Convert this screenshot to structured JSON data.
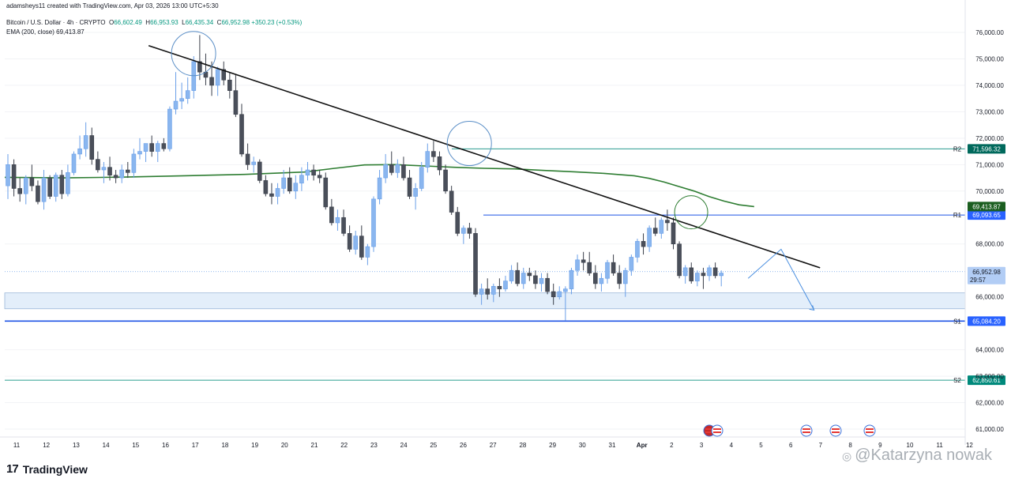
{
  "header": {
    "credit": "adamsheys11 created with TradingView.com, Apr 03, 2026 13:00 UTC+5:30",
    "symbol": "Bitcoin / U.S. Dollar · 4h · CRYPTO",
    "ohlc": {
      "o_label": "O",
      "o": "66,602.49",
      "h_label": "H",
      "h": "66,953.93",
      "l_label": "L",
      "l": "66,435.34",
      "c_label": "C",
      "c": "66,952.98",
      "change": "+350.23 (+0.53%)"
    },
    "ema_label": "EMA (200, close)",
    "ema_value": "69,413.87"
  },
  "chart_data": {
    "type": "candlestick",
    "symbol": "BTCUSD",
    "interval": "4h",
    "ylim": [
      60800,
      76400
    ],
    "y_ticks": [
      "76,000.00",
      "75,000.00",
      "74,000.00",
      "73,000.00",
      "72,000.00",
      "71,000.00",
      "70,000.00",
      "68,000.00",
      "66,000.00",
      "64,000.00",
      "63,000.00",
      "62,000.00",
      "61,000.00"
    ],
    "y_tick_values": [
      76000,
      75000,
      74000,
      73000,
      72000,
      71000,
      70000,
      68000,
      66000,
      64000,
      63000,
      62000,
      61000
    ],
    "x_ticks": [
      "11",
      "12",
      "13",
      "14",
      "15",
      "16",
      "17",
      "18",
      "19",
      "20",
      "21",
      "22",
      "23",
      "24",
      "25",
      "26",
      "27",
      "28",
      "29",
      "30",
      "31",
      "Apr",
      "2",
      "3",
      "4",
      "5",
      "6",
      "7",
      "8",
      "9",
      "10",
      "11",
      "12"
    ],
    "levels": [
      {
        "name": "R2",
        "value": 71596.32,
        "label": "71,596.32",
        "color": "#2a9d8f",
        "tag_color": "#00695c"
      },
      {
        "name": "R1",
        "value": 69093.65,
        "label": "69,093.65",
        "color": "#1e53e5",
        "tag_color": "#2962ff"
      },
      {
        "name": "S1",
        "value": 65084.2,
        "label": "65,084.20",
        "color": "#1e53e5",
        "tag_color": "#2962ff"
      },
      {
        "name": "S2",
        "value": 62850.61,
        "label": "62,850.61",
        "color": "#2a9d8f",
        "tag_color": "#00897b"
      }
    ],
    "ema": {
      "value": 69413.87,
      "label": "69,413.87",
      "color": "#2e7d32",
      "points": [
        [
          0,
          70520
        ],
        [
          2,
          70500
        ],
        [
          4,
          70530
        ],
        [
          6,
          70580
        ],
        [
          8,
          70630
        ],
        [
          10,
          70720
        ],
        [
          11,
          70860
        ],
        [
          12,
          70990
        ],
        [
          13,
          71000
        ],
        [
          14,
          70950
        ],
        [
          15,
          70900
        ],
        [
          16,
          70860
        ],
        [
          17,
          70840
        ],
        [
          18,
          70780
        ],
        [
          19,
          70730
        ],
        [
          20,
          70670
        ],
        [
          21,
          70580
        ],
        [
          21.5,
          70480
        ],
        [
          22,
          70340
        ],
        [
          22.5,
          70170
        ],
        [
          23,
          70000
        ],
        [
          23.5,
          69790
        ],
        [
          24,
          69620
        ],
        [
          24.5,
          69480
        ],
        [
          25,
          69413.87
        ]
      ]
    },
    "last_price": {
      "value": 66952.98,
      "label": "66,952.98",
      "countdown": "29:57"
    },
    "support_zone": [
      65550,
      66150
    ],
    "trendline": [
      [
        4.8,
        75500
      ],
      [
        27.2,
        67100
      ]
    ],
    "projection": [
      [
        24.8,
        66700
      ],
      [
        25.9,
        67800
      ],
      [
        27.0,
        65500
      ]
    ],
    "highlight_circles": [
      [
        6.3,
        75200
      ],
      [
        15.5,
        71800
      ],
      [
        22.9,
        69200
      ]
    ],
    "candles": [
      [
        0.0,
        70200,
        71400,
        69700,
        71000
      ],
      [
        0.2,
        71000,
        71200,
        69800,
        70100
      ],
      [
        0.4,
        70100,
        70500,
        69600,
        69900
      ],
      [
        0.6,
        69900,
        70600,
        69500,
        70500
      ],
      [
        0.8,
        70500,
        71000,
        70000,
        70200
      ],
      [
        1.0,
        70200,
        70400,
        69500,
        69600
      ],
      [
        1.2,
        69600,
        70800,
        69300,
        70500
      ],
      [
        1.4,
        70500,
        70600,
        69700,
        69800
      ],
      [
        1.6,
        69800,
        70700,
        69600,
        70600
      ],
      [
        1.8,
        70600,
        70800,
        69700,
        69900
      ],
      [
        2.0,
        69900,
        71000,
        69800,
        70700
      ],
      [
        2.2,
        70700,
        71500,
        70600,
        71400
      ],
      [
        2.4,
        71400,
        72100,
        71200,
        71600
      ],
      [
        2.6,
        71600,
        72600,
        71300,
        72100
      ],
      [
        2.8,
        72100,
        72400,
        71000,
        71200
      ],
      [
        3.0,
        71200,
        71500,
        70700,
        70800
      ],
      [
        3.2,
        70800,
        71100,
        70300,
        70900
      ],
      [
        3.4,
        70900,
        71300,
        70400,
        70600
      ],
      [
        3.6,
        70600,
        70800,
        70300,
        70500
      ],
      [
        3.8,
        70500,
        71000,
        70300,
        70800
      ],
      [
        4.0,
        70800,
        71100,
        70500,
        70700
      ],
      [
        4.2,
        70700,
        71600,
        70500,
        71400
      ],
      [
        4.4,
        71400,
        72000,
        71200,
        71500
      ],
      [
        4.6,
        71500,
        71800,
        71100,
        71800
      ],
      [
        4.8,
        71800,
        72100,
        71300,
        71500
      ],
      [
        5.0,
        71500,
        71900,
        71100,
        71800
      ],
      [
        5.2,
        71800,
        72000,
        71500,
        71600
      ],
      [
        5.4,
        71600,
        73200,
        71500,
        73100
      ],
      [
        5.6,
        73100,
        74500,
        72900,
        73400
      ],
      [
        5.8,
        73400,
        74100,
        73100,
        73500
      ],
      [
        6.0,
        73500,
        74300,
        73300,
        73800
      ],
      [
        6.2,
        73800,
        75100,
        73500,
        74900
      ],
      [
        6.4,
        74900,
        75900,
        74200,
        74500
      ],
      [
        6.6,
        74500,
        75200,
        74000,
        74300
      ],
      [
        6.8,
        74300,
        74900,
        73600,
        74000
      ],
      [
        7.0,
        74000,
        74700,
        73600,
        74600
      ],
      [
        7.2,
        74600,
        74900,
        74000,
        74200
      ],
      [
        7.4,
        74200,
        74500,
        73500,
        73800
      ],
      [
        7.6,
        73800,
        74400,
        72800,
        72900
      ],
      [
        7.8,
        72900,
        73300,
        71300,
        71400
      ],
      [
        8.0,
        71400,
        71800,
        70800,
        71000
      ],
      [
        8.2,
        71000,
        71300,
        70700,
        71100
      ],
      [
        8.4,
        71100,
        71200,
        70300,
        70400
      ],
      [
        8.6,
        70400,
        70600,
        69800,
        69900
      ],
      [
        8.8,
        69900,
        70300,
        69500,
        69800
      ],
      [
        9.0,
        69800,
        70300,
        69500,
        70100
      ],
      [
        9.2,
        70100,
        70800,
        69900,
        70500
      ],
      [
        9.4,
        70500,
        70900,
        69900,
        70000
      ],
      [
        9.6,
        70000,
        70600,
        69700,
        70300
      ],
      [
        9.8,
        70300,
        70900,
        70000,
        70600
      ],
      [
        10.0,
        70600,
        71100,
        70400,
        70800
      ],
      [
        10.2,
        70800,
        71000,
        70400,
        70600
      ],
      [
        10.4,
        70600,
        70800,
        70300,
        70500
      ],
      [
        10.6,
        70500,
        70700,
        69300,
        69400
      ],
      [
        10.8,
        69400,
        69700,
        68700,
        68800
      ],
      [
        11.0,
        68800,
        69300,
        68500,
        69000
      ],
      [
        11.2,
        69000,
        69300,
        68300,
        68400
      ],
      [
        11.4,
        68400,
        68700,
        67700,
        67800
      ],
      [
        11.6,
        67800,
        68500,
        67600,
        68300
      ],
      [
        11.8,
        68300,
        68700,
        67400,
        67500
      ],
      [
        12.0,
        67500,
        68000,
        67200,
        67900
      ],
      [
        12.2,
        67900,
        69800,
        67700,
        69700
      ],
      [
        12.4,
        69700,
        70800,
        69500,
        70500
      ],
      [
        12.6,
        70500,
        71400,
        70300,
        71000
      ],
      [
        12.8,
        71000,
        71500,
        70600,
        70700
      ],
      [
        13.0,
        70700,
        71200,
        70500,
        71000
      ],
      [
        13.2,
        71000,
        71300,
        70400,
        70500
      ],
      [
        13.4,
        70500,
        70800,
        69700,
        69800
      ],
      [
        13.6,
        69800,
        70300,
        69300,
        70100
      ],
      [
        13.8,
        70100,
        71100,
        70000,
        70900
      ],
      [
        14.0,
        70900,
        71800,
        70700,
        71500
      ],
      [
        14.2,
        71500,
        71900,
        71100,
        71300
      ],
      [
        14.4,
        71300,
        71500,
        70600,
        70800
      ],
      [
        14.6,
        70800,
        71000,
        69900,
        70000
      ],
      [
        14.8,
        70000,
        70200,
        69100,
        69200
      ],
      [
        15.0,
        69200,
        69400,
        68300,
        68400
      ],
      [
        15.2,
        68400,
        68700,
        68000,
        68600
      ],
      [
        15.4,
        68600,
        68800,
        68200,
        68400
      ],
      [
        15.6,
        68400,
        68600,
        66000,
        66100
      ],
      [
        15.8,
        66100,
        66500,
        65700,
        66300
      ],
      [
        16.0,
        66300,
        66700,
        65900,
        66100
      ],
      [
        16.2,
        66100,
        66500,
        65800,
        66400
      ],
      [
        16.4,
        66400,
        66700,
        66000,
        66300
      ],
      [
        16.6,
        66300,
        66800,
        66200,
        66600
      ],
      [
        16.8,
        66600,
        67200,
        66500,
        67000
      ],
      [
        17.0,
        67000,
        67300,
        66400,
        66500
      ],
      [
        17.2,
        66500,
        67100,
        66300,
        66900
      ],
      [
        17.4,
        66900,
        67100,
        66600,
        66800
      ],
      [
        17.6,
        66800,
        67000,
        66300,
        66500
      ],
      [
        17.8,
        66500,
        66900,
        66200,
        66700
      ],
      [
        18.0,
        66700,
        66900,
        66100,
        66200
      ],
      [
        18.2,
        66200,
        66500,
        65700,
        66000
      ],
      [
        18.4,
        66000,
        66400,
        65900,
        66200
      ],
      [
        18.6,
        66200,
        66400,
        65100,
        66300
      ],
      [
        18.8,
        66300,
        67100,
        66100,
        67000
      ],
      [
        19.0,
        67000,
        67600,
        66800,
        67400
      ],
      [
        19.2,
        67400,
        67700,
        67000,
        67300
      ],
      [
        19.4,
        67300,
        67700,
        66800,
        66900
      ],
      [
        19.6,
        66900,
        67200,
        66300,
        66500
      ],
      [
        19.8,
        66500,
        66900,
        66200,
        66700
      ],
      [
        20.0,
        66700,
        67400,
        66500,
        67300
      ],
      [
        20.2,
        67300,
        67600,
        66800,
        66900
      ],
      [
        20.4,
        66900,
        67200,
        66300,
        66500
      ],
      [
        20.6,
        66500,
        67100,
        66000,
        67000
      ],
      [
        20.8,
        67000,
        67600,
        66800,
        67500
      ],
      [
        21.0,
        67500,
        68200,
        67300,
        68100
      ],
      [
        21.2,
        68100,
        68400,
        67600,
        67900
      ],
      [
        21.4,
        67900,
        68700,
        67700,
        68600
      ],
      [
        21.6,
        68600,
        69000,
        68300,
        68400
      ],
      [
        21.8,
        68400,
        69000,
        68200,
        68900
      ],
      [
        22.0,
        68900,
        69300,
        68500,
        68800
      ],
      [
        22.2,
        68800,
        69000,
        67800,
        68000
      ],
      [
        22.4,
        68000,
        68100,
        66700,
        66800
      ],
      [
        22.6,
        66800,
        67200,
        66500,
        67100
      ],
      [
        22.8,
        67100,
        67300,
        66500,
        66600
      ],
      [
        23.0,
        66600,
        67000,
        66400,
        66900
      ],
      [
        23.2,
        66900,
        67100,
        66300,
        66800
      ],
      [
        23.4,
        66800,
        67200,
        66600,
        67100
      ],
      [
        23.6,
        67100,
        67300,
        66700,
        66800
      ],
      [
        23.8,
        66800,
        67000,
        66400,
        66900
      ]
    ]
  },
  "events": {
    "icons": [
      "lightning-flag-icon",
      "us-flag-icon",
      "us-flag-icon",
      "us-flag-icon",
      "us-flag-icon"
    ]
  },
  "footer": {
    "logo_mark": "17",
    "logo_text": "TradingView"
  },
  "watermark": {
    "text": "@Katarzyna nowak"
  }
}
